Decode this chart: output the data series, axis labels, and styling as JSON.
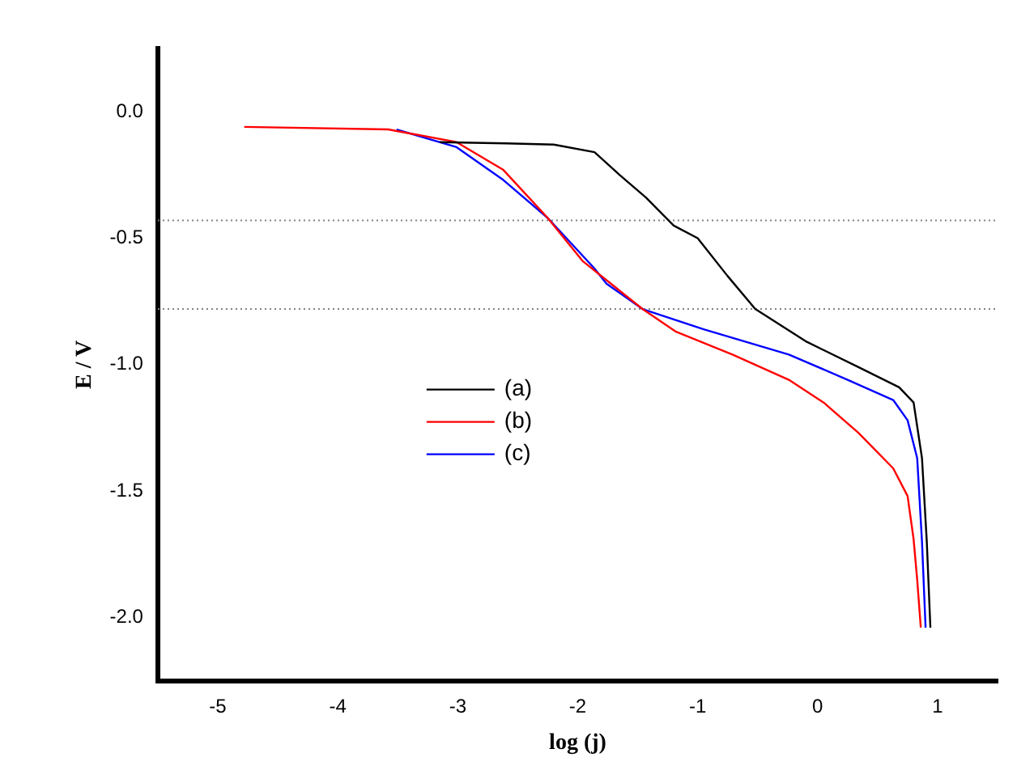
{
  "chart_data": {
    "type": "line",
    "xlabel": "log (j)",
    "ylabel": "E / V",
    "xlim": [
      -5.5,
      1.5
    ],
    "xticks": [
      -5,
      -4,
      -3,
      -2,
      -1,
      0,
      1
    ],
    "ylim": [
      -2.25,
      0.25
    ],
    "yticks": [
      {
        "value": -2,
        "label": "-2.0"
      },
      -1.5,
      {
        "value": -1,
        "label": "-1.0"
      },
      -0.5,
      {
        "value": 0,
        "label": "0.0"
      }
    ],
    "grid": false,
    "legend": "bottom left",
    "marker": "none",
    "line_style": "solid",
    "ref_lines": [
      {
        "axis": "y",
        "value": -0.43,
        "color": "#808080",
        "line_style": "dotted"
      },
      {
        "axis": "y",
        "value": -0.78,
        "color": "#808080",
        "line_style": "dotted"
      }
    ],
    "series": [
      {
        "name": "(a)",
        "color": "#000000",
        "x": [
          -3.15,
          -2.6,
          -2.2,
          -1.86,
          -1.65,
          -1.43,
          -1.2,
          -1.0,
          -0.75,
          -0.52,
          -0.09,
          0.34,
          0.68,
          0.8,
          0.87,
          0.91,
          0.94
        ],
        "values": [
          -0.12,
          -0.125,
          -0.13,
          -0.16,
          -0.25,
          -0.34,
          -0.45,
          -0.5,
          -0.65,
          -0.78,
          -0.91,
          -1.01,
          -1.09,
          -1.15,
          -1.37,
          -1.7,
          -2.04
        ]
      },
      {
        "name": "(b)",
        "color": "#ff0000",
        "x": [
          -4.78,
          -3.58,
          -3.01,
          -2.62,
          -2.25,
          -1.96,
          -1.46,
          -1.18,
          -0.71,
          -0.24,
          0.05,
          0.34,
          0.63,
          0.75,
          0.8,
          0.83,
          0.86
        ],
        "values": [
          -0.06,
          -0.07,
          -0.12,
          -0.23,
          -0.42,
          -0.59,
          -0.78,
          -0.87,
          -0.96,
          -1.06,
          -1.15,
          -1.27,
          -1.41,
          -1.52,
          -1.69,
          -1.85,
          -2.04
        ]
      },
      {
        "name": "(c)",
        "color": "#0000ff",
        "x": [
          -3.51,
          -3.01,
          -2.62,
          -2.25,
          -1.86,
          -1.76,
          -1.46,
          -0.95,
          -0.24,
          0.25,
          0.63,
          0.75,
          0.83,
          0.87,
          0.9
        ],
        "values": [
          -0.07,
          -0.14,
          -0.27,
          -0.42,
          -0.62,
          -0.68,
          -0.78,
          -0.86,
          -0.96,
          -1.06,
          -1.14,
          -1.22,
          -1.37,
          -1.7,
          -2.04
        ]
      }
    ]
  }
}
